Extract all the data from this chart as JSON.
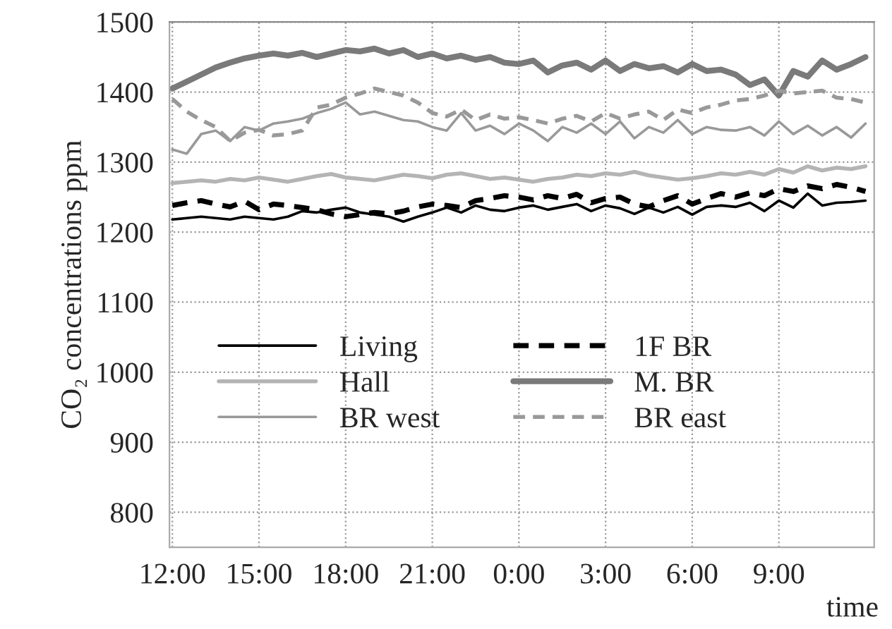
{
  "chart_data": {
    "type": "line",
    "ylabel": "CO₂ concentrations ppm",
    "xlabel": "time",
    "x": [
      "2000-01-01T12:00",
      "2000-01-01T12:30",
      "2000-01-01T13:00",
      "2000-01-01T13:30",
      "2000-01-01T14:00",
      "2000-01-01T14:30",
      "2000-01-01T15:00",
      "2000-01-01T15:30",
      "2000-01-01T16:00",
      "2000-01-01T16:30",
      "2000-01-01T17:00",
      "2000-01-01T17:30",
      "2000-01-01T18:00",
      "2000-01-01T18:30",
      "2000-01-01T19:00",
      "2000-01-01T19:30",
      "2000-01-01T20:00",
      "2000-01-01T20:30",
      "2000-01-01T21:00",
      "2000-01-01T21:30",
      "2000-01-01T22:00",
      "2000-01-01T22:30",
      "2000-01-01T23:00",
      "2000-01-01T23:30",
      "2000-01-02T00:00",
      "2000-01-02T00:30",
      "2000-01-02T01:00",
      "2000-01-02T01:30",
      "2000-01-02T02:00",
      "2000-01-02T02:30",
      "2000-01-02T03:00",
      "2000-01-02T03:30",
      "2000-01-02T04:00",
      "2000-01-02T04:30",
      "2000-01-02T05:00",
      "2000-01-02T05:30",
      "2000-01-02T06:00",
      "2000-01-02T06:30",
      "2000-01-02T07:00",
      "2000-01-02T07:30",
      "2000-01-02T08:00",
      "2000-01-02T08:30",
      "2000-01-02T09:00",
      "2000-01-02T09:30",
      "2000-01-02T10:00",
      "2000-01-02T10:30",
      "2000-01-02T11:00",
      "2000-01-02T11:30",
      "2000-01-02T12:00"
    ],
    "xlim": [
      "2000-01-01T11:54",
      "2000-01-02T12:18"
    ],
    "xticks": [
      {
        "value": "2000-01-01T12:00",
        "label": "12:00"
      },
      {
        "value": "2000-01-01T15:00",
        "label": "15:00"
      },
      {
        "value": "2000-01-01T18:00",
        "label": "18:00"
      },
      {
        "value": "2000-01-01T21:00",
        "label": "21:00"
      },
      {
        "value": "2000-01-02T00:00",
        "label": "0:00"
      },
      {
        "value": "2000-01-02T03:00",
        "label": "3:00"
      },
      {
        "value": "2000-01-02T06:00",
        "label": "6:00"
      },
      {
        "value": "2000-01-02T09:00",
        "label": "9:00"
      }
    ],
    "ylim": [
      750,
      1500
    ],
    "yticks": [
      800,
      900,
      1000,
      1100,
      1200,
      1300,
      1400,
      1500
    ],
    "grid": true,
    "legend": "center",
    "marker": "none",
    "series": [
      {
        "name": "Living",
        "color": "#000000",
        "line_style": "solid",
        "values": [
          1218,
          1220,
          1222,
          1220,
          1218,
          1222,
          1220,
          1218,
          1222,
          1230,
          1228,
          1232,
          1235,
          1228,
          1225,
          1222,
          1215,
          1222,
          1228,
          1235,
          1228,
          1238,
          1232,
          1230,
          1235,
          1238,
          1232,
          1236,
          1240,
          1230,
          1238,
          1234,
          1226,
          1235,
          1228,
          1236,
          1225,
          1236,
          1238,
          1236,
          1242,
          1230,
          1245,
          1235,
          1255,
          1238,
          1242,
          1243,
          1245
        ]
      },
      {
        "name": "1F BR",
        "color": "#000000",
        "line_style": "dashed",
        "values": [
          1238,
          1242,
          1245,
          1240,
          1236,
          1244,
          1232,
          1240,
          1238,
          1235,
          1232,
          1226,
          1222,
          1225,
          1228,
          1226,
          1230,
          1236,
          1240,
          1238,
          1235,
          1245,
          1248,
          1252,
          1250,
          1246,
          1252,
          1248,
          1254,
          1242,
          1248,
          1250,
          1240,
          1236,
          1245,
          1252,
          1240,
          1248,
          1255,
          1250,
          1256,
          1252,
          1262,
          1258,
          1266,
          1262,
          1268,
          1264,
          1258
        ]
      },
      {
        "name": "Hall",
        "color": "#b4b4b4",
        "line_style": "solid",
        "values": [
          1270,
          1272,
          1274,
          1272,
          1276,
          1274,
          1278,
          1275,
          1272,
          1276,
          1280,
          1283,
          1278,
          1276,
          1274,
          1278,
          1282,
          1280,
          1277,
          1282,
          1284,
          1280,
          1276,
          1278,
          1275,
          1272,
          1276,
          1278,
          1282,
          1280,
          1284,
          1282,
          1286,
          1281,
          1278,
          1275,
          1277,
          1280,
          1284,
          1282,
          1286,
          1282,
          1290,
          1285,
          1294,
          1288,
          1292,
          1290,
          1294
        ]
      },
      {
        "name": "M. BR",
        "color": "#7a7a7a",
        "line_style": "solid",
        "values": [
          1405,
          1415,
          1425,
          1435,
          1442,
          1448,
          1452,
          1455,
          1452,
          1456,
          1450,
          1455,
          1460,
          1458,
          1462,
          1455,
          1460,
          1450,
          1455,
          1448,
          1452,
          1446,
          1450,
          1442,
          1440,
          1445,
          1428,
          1438,
          1442,
          1432,
          1445,
          1430,
          1440,
          1434,
          1437,
          1428,
          1440,
          1430,
          1432,
          1425,
          1410,
          1418,
          1395,
          1430,
          1422,
          1445,
          1432,
          1440,
          1450
        ]
      },
      {
        "name": "BR west",
        "color": "#999999",
        "line_style": "solid",
        "values": [
          1318,
          1312,
          1340,
          1345,
          1330,
          1350,
          1345,
          1355,
          1358,
          1362,
          1370,
          1376,
          1385,
          1368,
          1372,
          1366,
          1360,
          1358,
          1350,
          1345,
          1370,
          1345,
          1352,
          1340,
          1355,
          1345,
          1330,
          1350,
          1342,
          1355,
          1340,
          1358,
          1334,
          1350,
          1342,
          1360,
          1340,
          1350,
          1346,
          1345,
          1350,
          1338,
          1358,
          1340,
          1352,
          1338,
          1350,
          1335,
          1355
        ]
      },
      {
        "name": "BR east",
        "color": "#999999",
        "line_style": "dashed",
        "values": [
          1390,
          1372,
          1360,
          1350,
          1330,
          1342,
          1346,
          1338,
          1340,
          1345,
          1378,
          1382,
          1392,
          1398,
          1405,
          1400,
          1395,
          1385,
          1370,
          1365,
          1375,
          1360,
          1368,
          1362,
          1364,
          1360,
          1355,
          1362,
          1366,
          1358,
          1370,
          1362,
          1368,
          1372,
          1360,
          1375,
          1370,
          1378,
          1382,
          1388,
          1390,
          1395,
          1402,
          1398,
          1400,
          1402,
          1392,
          1390,
          1385
        ]
      }
    ]
  }
}
